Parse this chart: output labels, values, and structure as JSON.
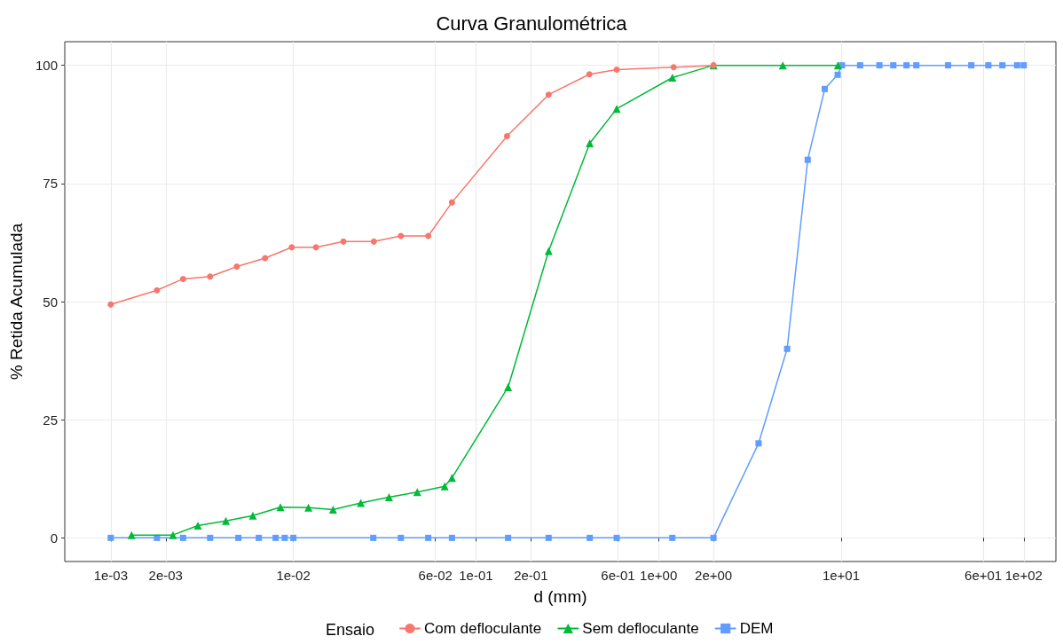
{
  "chart_data": {
    "type": "line",
    "title": "Curva Granulométrica",
    "xlabel": "d (mm)",
    "ylabel": "% Retida Acumulada",
    "legend_title": "Ensaio",
    "log": "x",
    "grid": true,
    "legend": "bottom",
    "line_style": "solid",
    "xlim": [
      0.00056,
      150
    ],
    "ylim": [
      -5,
      105
    ],
    "xticks": [
      {
        "value": 0.001,
        "label": "1e-03"
      },
      {
        "value": 0.002,
        "label": "2e-03"
      },
      {
        "value": 0.01,
        "label": "1e-02"
      },
      {
        "value": 0.06,
        "label": "6e-02"
      },
      {
        "value": 0.1,
        "label": "1e-01"
      },
      {
        "value": 0.2,
        "label": "2e-01"
      },
      {
        "value": 0.6,
        "label": "6e-01"
      },
      {
        "value": 1,
        "label": "1e+00"
      },
      {
        "value": 2,
        "label": "2e+00"
      },
      {
        "value": 10,
        "label": "1e+01"
      },
      {
        "value": 60,
        "label": "6e+01"
      },
      {
        "value": 100,
        "label": "1e+02"
      }
    ],
    "yticks": [
      0,
      25,
      50,
      75,
      100
    ],
    "series": [
      {
        "name": "Com defloculante",
        "color": "#f8766d",
        "marker": "circle",
        "x": [
          0.001,
          0.00179,
          0.00249,
          0.0035,
          0.0049,
          0.007,
          0.0098,
          0.0133,
          0.0188,
          0.0276,
          0.0388,
          0.0548,
          0.0739,
          0.148,
          0.25,
          0.418,
          0.59,
          1.21,
          2.0
        ],
        "values": [
          49.4,
          52.4,
          54.8,
          55.3,
          57.4,
          59.2,
          61.5,
          61.5,
          62.7,
          62.7,
          63.9,
          63.9,
          71.0,
          85.0,
          93.8,
          98.1,
          99.1,
          99.6,
          100
        ]
      },
      {
        "name": "Sem defloculante",
        "color": "#00ba38",
        "marker": "triangle",
        "x": [
          0.0013,
          0.00219,
          0.003,
          0.00427,
          0.006,
          0.0085,
          0.0121,
          0.0165,
          0.0234,
          0.0334,
          0.0477,
          0.0674,
          0.0739,
          0.15,
          0.25,
          0.42,
          0.59,
          1.19,
          2.0,
          4.79,
          9.6
        ],
        "values": [
          0.6,
          0.6,
          2.6,
          3.6,
          4.7,
          6.5,
          6.4,
          6.0,
          7.4,
          8.6,
          9.7,
          10.9,
          12.7,
          31.9,
          60.7,
          83.5,
          90.8,
          97.4,
          100,
          100,
          100
        ]
      },
      {
        "name": "DEM",
        "color": "#619cff",
        "marker": "square",
        "x": [
          0.001,
          0.00179,
          0.00249,
          0.0035,
          0.005,
          0.00647,
          0.008,
          0.00897,
          0.01,
          0.0274,
          0.0388,
          0.0548,
          0.0739,
          0.15,
          0.25,
          0.42,
          0.59,
          1.19,
          2.0,
          3.53,
          5.06,
          6.56,
          8.13,
          9.57,
          10.1,
          12.7,
          16.2,
          19.3,
          22.8,
          25.8,
          38.5,
          51.6,
          64,
          76.4,
          92,
          100
        ],
        "values": [
          0,
          0,
          0,
          0,
          0,
          0,
          0,
          0,
          0,
          0,
          0,
          0,
          0,
          0,
          0,
          0,
          0,
          0,
          0,
          20,
          40,
          80,
          95,
          98,
          100,
          100,
          100,
          100,
          100,
          100,
          100,
          100,
          100,
          100,
          100,
          100
        ]
      }
    ]
  }
}
